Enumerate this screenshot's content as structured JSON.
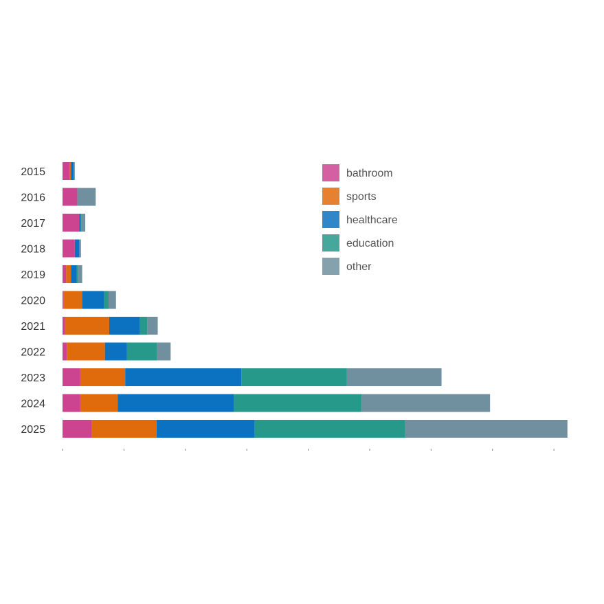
{
  "chart_data": {
    "type": "bar",
    "orientation": "horizontal",
    "stacked": true,
    "categories": [
      "2015",
      "2016",
      "2017",
      "2018",
      "2019",
      "2020",
      "2021",
      "2022",
      "2023",
      "2024",
      "2025"
    ],
    "series": [
      {
        "name": "bathroom",
        "color": "#cc4490",
        "values": [
          1.2,
          2.4,
          2.7,
          2.0,
          0.6,
          0.2,
          0.4,
          0.7,
          2.9,
          2.9,
          4.7
        ]
      },
      {
        "name": "sports",
        "color": "#e06b0c",
        "values": [
          0.2,
          0.0,
          0.0,
          0.0,
          0.8,
          3.0,
          7.2,
          6.2,
          7.3,
          6.1,
          10.6
        ]
      },
      {
        "name": "healthcare",
        "color": "#0a72c1",
        "values": [
          0.4,
          0.0,
          0.3,
          0.7,
          0.9,
          3.6,
          5.0,
          3.6,
          18.9,
          18.9,
          16.0
        ]
      },
      {
        "name": "education",
        "color": "#26998a",
        "values": [
          0.0,
          0.0,
          0.1,
          0.1,
          0.2,
          0.7,
          1.2,
          4.9,
          17.2,
          20.8,
          24.5
        ]
      },
      {
        "name": "other",
        "color": "#7090a0",
        "values": [
          0.2,
          3.0,
          0.6,
          0.2,
          0.7,
          1.2,
          1.7,
          2.2,
          15.4,
          20.9,
          26.4
        ]
      }
    ],
    "xlim": [
      0,
      82
    ],
    "x_ticks": [
      0,
      10,
      20,
      30,
      40,
      50,
      60,
      70,
      80
    ],
    "x_tick_labels_visible": false,
    "grid": false,
    "legend": {
      "placement": "top-right",
      "items": [
        {
          "label": "bathroom",
          "color": "#cc4490"
        },
        {
          "label": "sports",
          "color": "#e06b0c"
        },
        {
          "label": "healthcare",
          "color": "#0a72c1"
        },
        {
          "label": "education",
          "color": "#26998a"
        },
        {
          "label": "other",
          "color": "#7090a0"
        }
      ]
    }
  }
}
